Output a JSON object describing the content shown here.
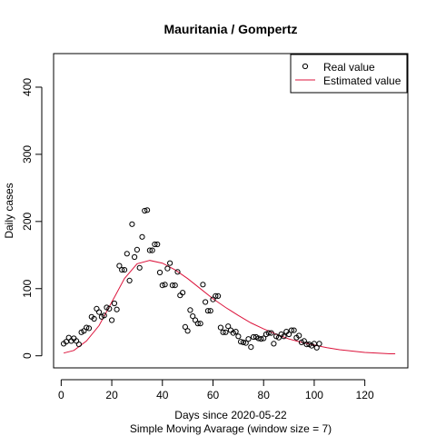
{
  "chart_data": {
    "type": "scatter",
    "title": "Mauritania / Gompertz",
    "xlabel": "Days since 2020-05-22",
    "xlabel_sub": "Simple Moving Avarage (window size = 7)",
    "ylabel": "Daily cases",
    "xlim": [
      -3,
      137
    ],
    "ylim": [
      -18,
      450
    ],
    "x_ticks": [
      0,
      20,
      40,
      60,
      80,
      100,
      120
    ],
    "x_tick_labels": [
      "0",
      "20",
      "40",
      "60",
      "80",
      "100",
      "120"
    ],
    "y_ticks": [
      0,
      100,
      200,
      300,
      400
    ],
    "y_tick_labels": [
      "0",
      "100",
      "200",
      "300",
      "400"
    ],
    "grid": false,
    "legend": {
      "placement": "top-right",
      "entries": [
        "Real value",
        "Estimated value"
      ]
    },
    "series": [
      {
        "name": "Real value",
        "kind": "points",
        "color": "#000000",
        "x": [
          1,
          2,
          3,
          4,
          5,
          6,
          7,
          8,
          9,
          10,
          11,
          12,
          13,
          14,
          15,
          16,
          17,
          18,
          19,
          20,
          21,
          22,
          23,
          24,
          25,
          26,
          27,
          28,
          29,
          30,
          31,
          32,
          33,
          34,
          35,
          36,
          37,
          38,
          39,
          40,
          41,
          42,
          43,
          44,
          45,
          46,
          47,
          48,
          49,
          50,
          51,
          52,
          53,
          54,
          55,
          56,
          57,
          58,
          59,
          60,
          61,
          62,
          63,
          64,
          65,
          66,
          67,
          68,
          69,
          70,
          71,
          72,
          73,
          74,
          75,
          76,
          77,
          78,
          79,
          80,
          81,
          82,
          83,
          84,
          85,
          86,
          87,
          88,
          89,
          90,
          91,
          92,
          93,
          94,
          95,
          96,
          97,
          98,
          99,
          100,
          101,
          102
        ],
        "y": [
          18,
          21,
          27,
          22,
          26,
          22,
          17,
          35,
          37,
          42,
          41,
          58,
          55,
          70,
          65,
          58,
          60,
          72,
          70,
          53,
          78,
          69,
          134,
          128,
          128,
          152,
          112,
          196,
          147,
          158,
          131,
          177,
          216,
          217,
          157,
          157,
          166,
          166,
          124,
          105,
          106,
          130,
          138,
          105,
          105,
          125,
          90,
          94,
          43,
          37,
          68,
          59,
          53,
          48,
          48,
          106,
          80,
          67,
          67,
          84,
          89,
          89,
          42,
          35,
          35,
          44,
          38,
          34,
          36,
          29,
          21,
          20,
          19,
          25,
          13,
          28,
          28,
          26,
          25,
          26,
          32,
          34,
          34,
          18,
          29,
          27,
          32,
          29,
          36,
          32,
          38,
          38,
          27,
          30,
          20,
          22,
          17,
          17,
          15,
          18,
          12,
          18
        ]
      },
      {
        "name": "Estimated value",
        "kind": "line",
        "color": "#dc143c",
        "x": [
          1,
          5,
          10,
          15,
          20,
          25,
          30,
          35,
          40,
          45,
          50,
          55,
          60,
          65,
          70,
          75,
          80,
          85,
          90,
          95,
          100,
          105,
          110,
          115,
          120,
          125,
          130,
          132
        ],
        "y": [
          4,
          8,
          22,
          45,
          80,
          115,
          137,
          142,
          138,
          128,
          115,
          100,
          85,
          72,
          60,
          49,
          40,
          32,
          25,
          20,
          16,
          12,
          9,
          7,
          5,
          4,
          3,
          3
        ]
      }
    ]
  }
}
